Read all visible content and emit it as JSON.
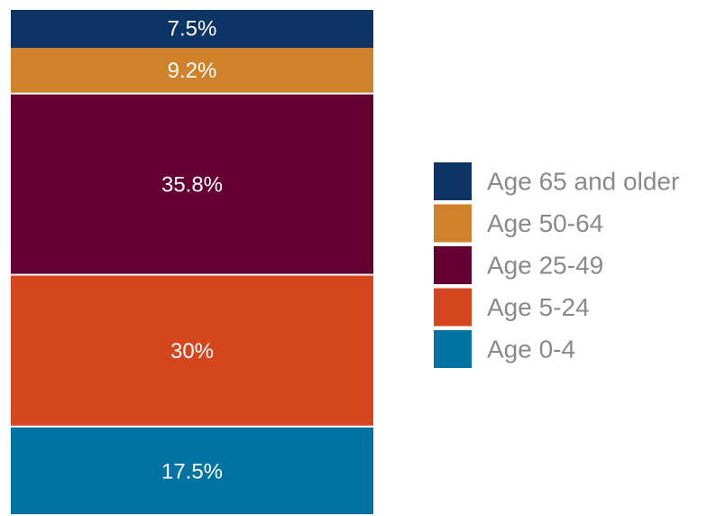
{
  "chart_data": {
    "type": "stacked-bar",
    "categories": [
      null
    ],
    "series": [
      {
        "name": "Age 0-4",
        "color": "#0073a3",
        "values": [
          17.5
        ],
        "value_labels": [
          "17.5%"
        ]
      },
      {
        "name": "Age 5-24",
        "color": "#d5461f",
        "values": [
          30
        ],
        "value_labels": [
          "30%"
        ]
      },
      {
        "name": "Age 25-49",
        "color": "#650033",
        "values": [
          35.8
        ],
        "value_labels": [
          "35.8%"
        ]
      },
      {
        "name": "Age 50-64",
        "color": "#d0822b",
        "values": [
          9.2
        ],
        "value_labels": [
          "9.2%"
        ]
      },
      {
        "name": "Age 65 and older",
        "color": "#0c3566",
        "values": [
          7.5
        ],
        "value_labels": [
          "7.5%"
        ]
      }
    ],
    "legend": "right"
  }
}
